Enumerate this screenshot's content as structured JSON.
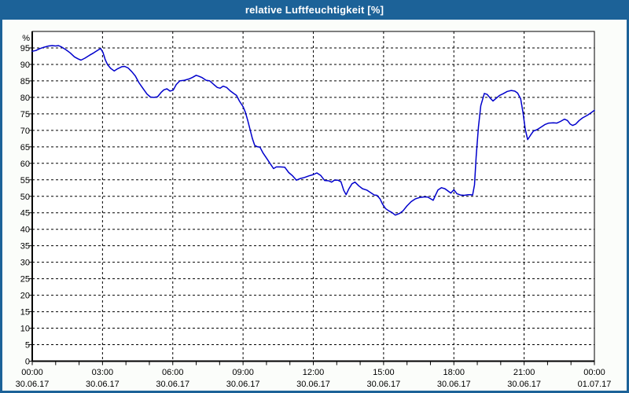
{
  "window": {
    "title": "relative Luftfeuchtigkeit [%]",
    "colors": {
      "titlebar": "#1c6298",
      "border": "#1c6298",
      "title_text": "#ffffff",
      "background": "#fbfdfa"
    }
  },
  "chart_data": {
    "type": "line",
    "title": "relative Luftfeuchtigkeit [%]",
    "ylabel": "%",
    "xlabel": "",
    "ylim": [
      0,
      100
    ],
    "xlim_hours": [
      0,
      24
    ],
    "grid": "dashed",
    "legend": "none",
    "colors": {
      "line": "#0000cc",
      "grid": "#000000",
      "axis": "#000000",
      "plot_background": "#ffffff",
      "tick_text": "#000000"
    },
    "y_ticks": {
      "interval": 5,
      "unit_label": "%",
      "labels": [
        "0",
        "5",
        "10",
        "15",
        "20",
        "25",
        "30",
        "35",
        "40",
        "45",
        "50",
        "55",
        "60",
        "65",
        "70",
        "75",
        "80",
        "85",
        "90",
        "95"
      ]
    },
    "x_ticks": {
      "minor_interval_hours": 1,
      "major": [
        {
          "hour": 0,
          "time": "00:00",
          "date": "30.06.17"
        },
        {
          "hour": 3,
          "time": "03:00",
          "date": "30.06.17"
        },
        {
          "hour": 6,
          "time": "06:00",
          "date": "30.06.17"
        },
        {
          "hour": 9,
          "time": "09:00",
          "date": "30.06.17"
        },
        {
          "hour": 12,
          "time": "12:00",
          "date": "30.06.17"
        },
        {
          "hour": 15,
          "time": "15:00",
          "date": "30.06.17"
        },
        {
          "hour": 18,
          "time": "18:00",
          "date": "30.06.17"
        },
        {
          "hour": 21,
          "time": "21:00",
          "date": "30.06.17"
        },
        {
          "hour": 24,
          "time": "00:00",
          "date": "01.07.17"
        }
      ]
    },
    "series": [
      {
        "name": "relative Luftfeuchtigkeit [%]",
        "points": [
          [
            0,
            94.0
          ],
          [
            0.15,
            94.2
          ],
          [
            0.33,
            94.8
          ],
          [
            0.5,
            95.2
          ],
          [
            0.7,
            95.6
          ],
          [
            0.85,
            95.7
          ],
          [
            1.0,
            95.6
          ],
          [
            1.12,
            95.7
          ],
          [
            1.25,
            95.3
          ],
          [
            1.45,
            94.4
          ],
          [
            1.62,
            93.5
          ],
          [
            1.8,
            92.3
          ],
          [
            1.95,
            91.7
          ],
          [
            2.08,
            91.3
          ],
          [
            2.25,
            91.9
          ],
          [
            2.45,
            92.8
          ],
          [
            2.62,
            93.5
          ],
          [
            2.8,
            94.3
          ],
          [
            2.92,
            94.8
          ],
          [
            3.02,
            93.6
          ],
          [
            3.12,
            91.4
          ],
          [
            3.22,
            89.9
          ],
          [
            3.35,
            88.8
          ],
          [
            3.5,
            88.0
          ],
          [
            3.65,
            88.7
          ],
          [
            3.82,
            89.3
          ],
          [
            3.95,
            89.4
          ],
          [
            4.1,
            88.9
          ],
          [
            4.25,
            87.8
          ],
          [
            4.4,
            86.5
          ],
          [
            4.55,
            84.5
          ],
          [
            4.72,
            82.8
          ],
          [
            4.9,
            81.0
          ],
          [
            5.05,
            80.1
          ],
          [
            5.2,
            80.0
          ],
          [
            5.35,
            80.2
          ],
          [
            5.5,
            81.5
          ],
          [
            5.62,
            82.3
          ],
          [
            5.75,
            82.6
          ],
          [
            5.88,
            81.9
          ],
          [
            6.02,
            82.2
          ],
          [
            6.15,
            83.9
          ],
          [
            6.3,
            85.0
          ],
          [
            6.5,
            85.2
          ],
          [
            6.7,
            85.6
          ],
          [
            6.85,
            86.1
          ],
          [
            7.0,
            86.7
          ],
          [
            7.12,
            86.4
          ],
          [
            7.25,
            86.0
          ],
          [
            7.42,
            85.2
          ],
          [
            7.58,
            85.0
          ],
          [
            7.75,
            83.9
          ],
          [
            7.9,
            83.0
          ],
          [
            8.02,
            82.8
          ],
          [
            8.15,
            83.4
          ],
          [
            8.3,
            83.0
          ],
          [
            8.45,
            82.0
          ],
          [
            8.6,
            81.2
          ],
          [
            8.72,
            80.6
          ],
          [
            8.85,
            78.8
          ],
          [
            9.0,
            77.2
          ],
          [
            9.1,
            75.5
          ],
          [
            9.2,
            73.0
          ],
          [
            9.3,
            70.2
          ],
          [
            9.4,
            67.5
          ],
          [
            9.5,
            65.4
          ],
          [
            9.62,
            65.0
          ],
          [
            9.72,
            64.9
          ],
          [
            9.85,
            63.2
          ],
          [
            10.0,
            61.6
          ],
          [
            10.15,
            60.0
          ],
          [
            10.3,
            58.4
          ],
          [
            10.42,
            58.9
          ],
          [
            10.6,
            58.9
          ],
          [
            10.78,
            58.8
          ],
          [
            10.95,
            57.2
          ],
          [
            11.1,
            56.3
          ],
          [
            11.28,
            54.9
          ],
          [
            11.45,
            55.4
          ],
          [
            11.62,
            55.7
          ],
          [
            11.82,
            56.2
          ],
          [
            12.0,
            56.6
          ],
          [
            12.15,
            57.1
          ],
          [
            12.32,
            56.3
          ],
          [
            12.48,
            54.8
          ],
          [
            12.65,
            54.7
          ],
          [
            12.78,
            54.3
          ],
          [
            12.9,
            54.9
          ],
          [
            13.05,
            54.9
          ],
          [
            13.18,
            54.4
          ],
          [
            13.3,
            51.8
          ],
          [
            13.4,
            50.5
          ],
          [
            13.52,
            52.3
          ],
          [
            13.65,
            53.8
          ],
          [
            13.78,
            54.3
          ],
          [
            13.95,
            53.1
          ],
          [
            14.1,
            52.3
          ],
          [
            14.28,
            51.9
          ],
          [
            14.45,
            51.1
          ],
          [
            14.6,
            50.4
          ],
          [
            14.72,
            50.3
          ],
          [
            14.85,
            49.2
          ],
          [
            14.95,
            47.7
          ],
          [
            15.08,
            46.3
          ],
          [
            15.22,
            45.6
          ],
          [
            15.35,
            45.1
          ],
          [
            15.5,
            44.3
          ],
          [
            15.68,
            44.8
          ],
          [
            15.83,
            45.6
          ],
          [
            16.0,
            47.1
          ],
          [
            16.18,
            48.4
          ],
          [
            16.35,
            49.2
          ],
          [
            16.52,
            49.6
          ],
          [
            16.7,
            49.8
          ],
          [
            16.88,
            49.8
          ],
          [
            17.02,
            49.2
          ],
          [
            17.12,
            48.8
          ],
          [
            17.22,
            50.4
          ],
          [
            17.32,
            51.9
          ],
          [
            17.47,
            52.6
          ],
          [
            17.62,
            52.3
          ],
          [
            17.75,
            51.6
          ],
          [
            17.87,
            51.0
          ],
          [
            18.0,
            52.0
          ],
          [
            18.13,
            50.8
          ],
          [
            18.28,
            50.4
          ],
          [
            18.45,
            50.3
          ],
          [
            18.6,
            50.5
          ],
          [
            18.72,
            50.5
          ],
          [
            18.8,
            50.4
          ],
          [
            18.88,
            53.5
          ],
          [
            18.95,
            62.0
          ],
          [
            19.05,
            71.0
          ],
          [
            19.15,
            77.5
          ],
          [
            19.3,
            81.2
          ],
          [
            19.42,
            80.9
          ],
          [
            19.55,
            79.8
          ],
          [
            19.67,
            78.9
          ],
          [
            19.8,
            79.7
          ],
          [
            19.95,
            80.6
          ],
          [
            20.1,
            81.1
          ],
          [
            20.28,
            81.8
          ],
          [
            20.45,
            82.1
          ],
          [
            20.6,
            81.9
          ],
          [
            20.72,
            81.3
          ],
          [
            20.85,
            79.6
          ],
          [
            20.95,
            75.5
          ],
          [
            21.05,
            70.3
          ],
          [
            21.15,
            67.2
          ],
          [
            21.27,
            68.5
          ],
          [
            21.4,
            69.8
          ],
          [
            21.55,
            70.2
          ],
          [
            21.72,
            71.0
          ],
          [
            21.9,
            71.8
          ],
          [
            22.05,
            72.2
          ],
          [
            22.25,
            72.3
          ],
          [
            22.4,
            72.2
          ],
          [
            22.55,
            72.7
          ],
          [
            22.72,
            73.4
          ],
          [
            22.85,
            73.0
          ],
          [
            22.97,
            71.9
          ],
          [
            23.07,
            71.5
          ],
          [
            23.2,
            71.9
          ],
          [
            23.35,
            73.0
          ],
          [
            23.5,
            73.8
          ],
          [
            23.7,
            74.6
          ],
          [
            23.85,
            75.3
          ],
          [
            24.0,
            76.1
          ]
        ]
      }
    ]
  }
}
